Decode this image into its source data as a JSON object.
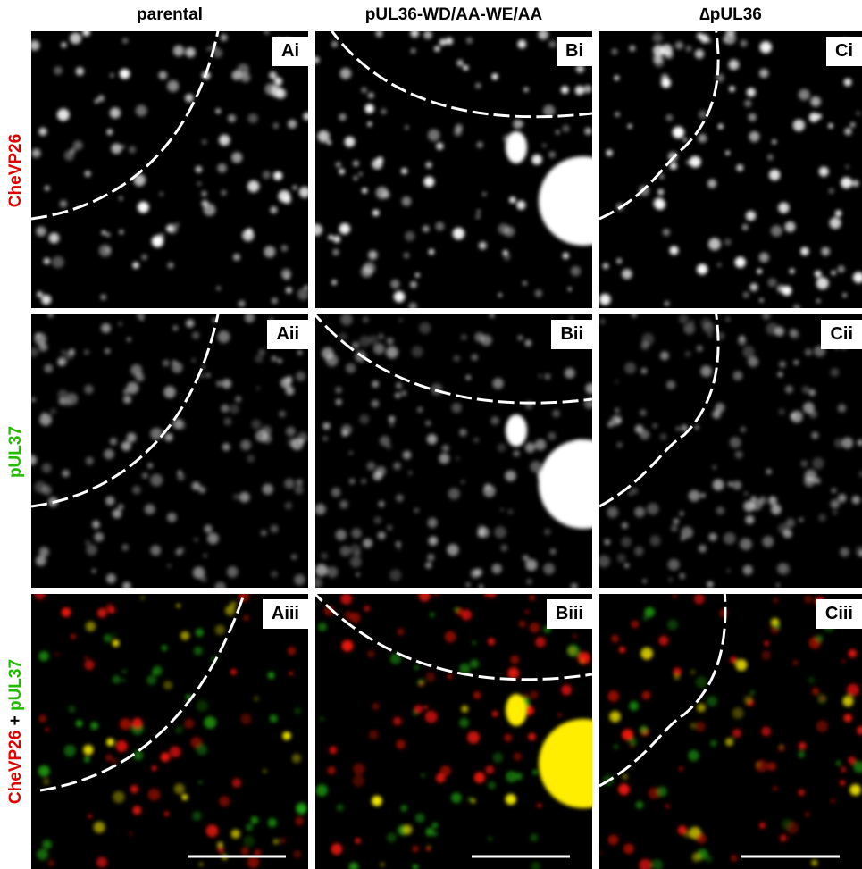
{
  "columns": [
    "parental",
    "pUL36-WD/AA-WE/AA",
    "∆pUL36"
  ],
  "rows": [
    {
      "label": "CheVP26",
      "panels": [
        "Ai",
        "Bi",
        "Ci"
      ]
    },
    {
      "label": "pUL37",
      "panels": [
        "Aii",
        "Bii",
        "Cii"
      ]
    },
    {
      "label_parts": [
        "CheVP26",
        "+",
        "pUL37"
      ],
      "panels": [
        "Aiii",
        "Biii",
        "Ciii"
      ]
    }
  ]
}
